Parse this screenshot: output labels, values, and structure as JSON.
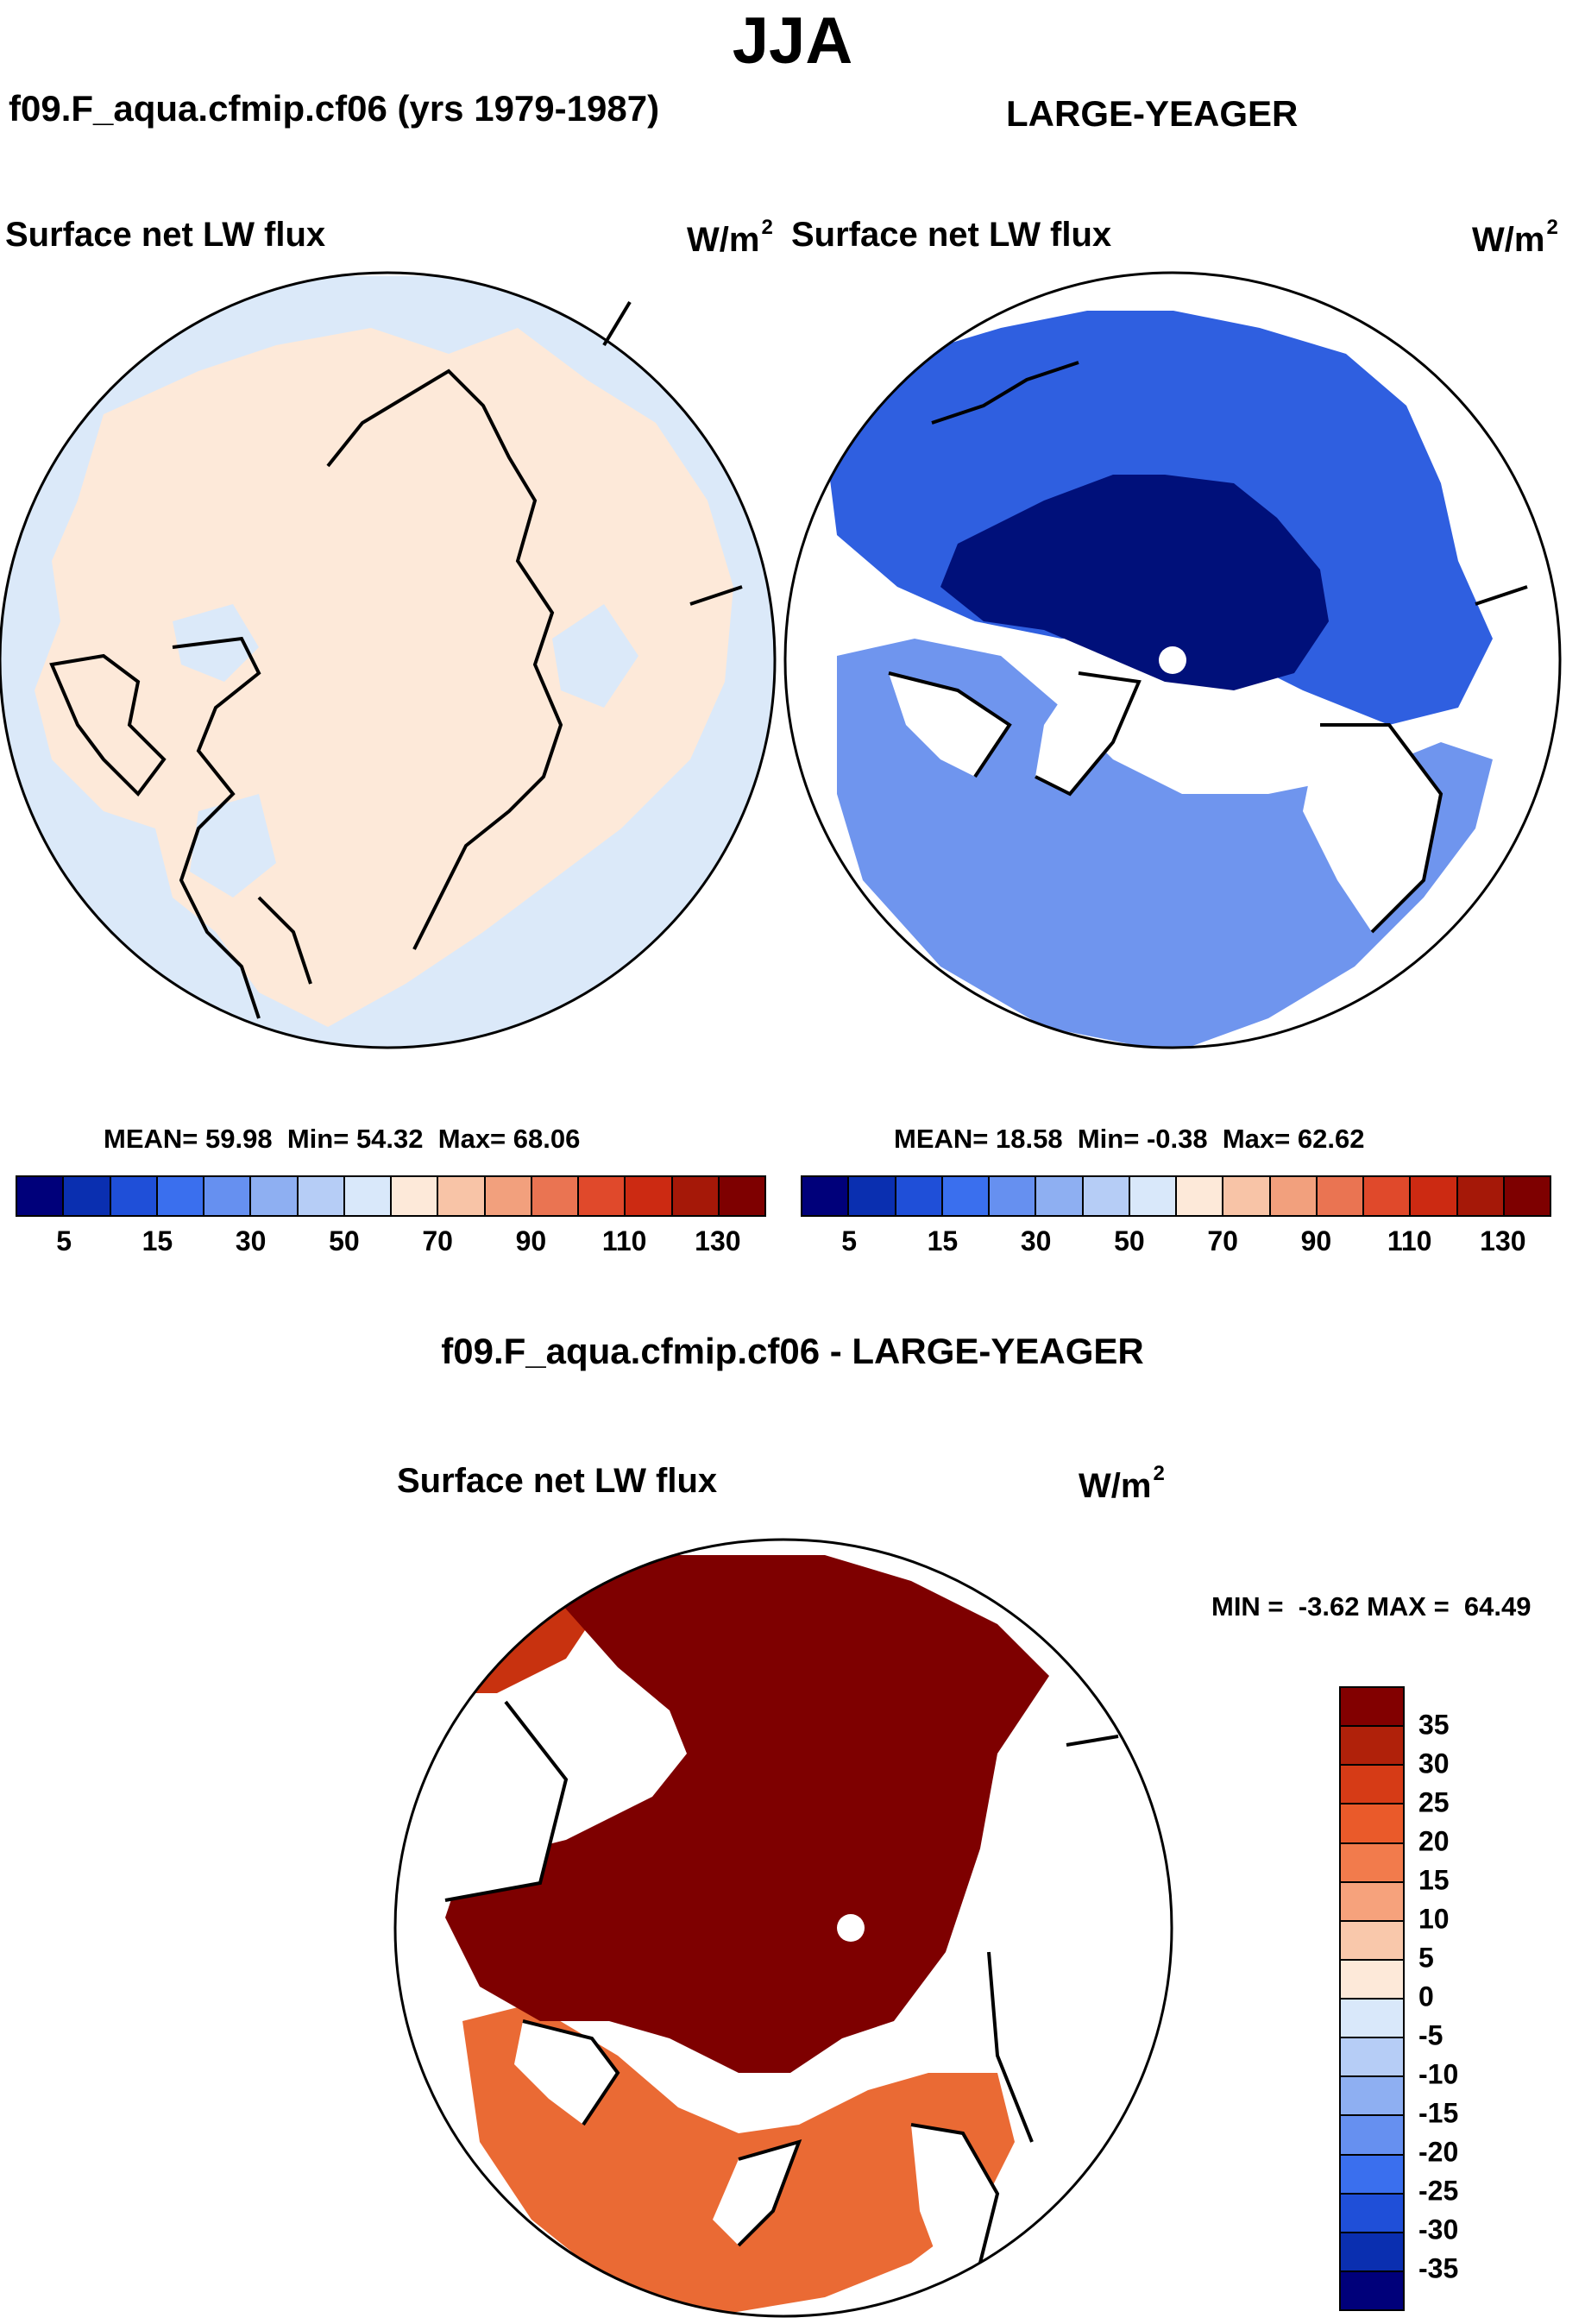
{
  "figure": {
    "season": "JJA",
    "left_panel": {
      "run_label": "f09.F_aqua.cfmip.cf06 (yrs 1979-1987)",
      "variable": "Surface net LW flux",
      "units": "W/m",
      "units_exp": "2",
      "stats": {
        "mean_label": "MEAN=",
        "mean": "59.98",
        "min_label": "Min=",
        "min": "54.32",
        "max_label": "Max=",
        "max": "68.06"
      }
    },
    "right_panel": {
      "run_label": "LARGE-YEAGER",
      "variable": "Surface net LW flux",
      "units": "W/m",
      "units_exp": "2",
      "stats": {
        "mean_label": "MEAN=",
        "mean": "18.58",
        "min_label": "Min=",
        "min": "-0.38",
        "max_label": "Max=",
        "max": "62.62"
      }
    },
    "bottom_panel": {
      "title": "f09.F_aqua.cfmip.cf06 - LARGE-YEAGER",
      "variable": "Surface net LW flux",
      "units": "W/m",
      "units_exp": "2",
      "minmax": {
        "min_label": "MIN =",
        "min": "-3.62",
        "max_label": "MAX =",
        "max": "64.49"
      }
    },
    "abs_colorbar": {
      "tick_labels": [
        "5",
        "15",
        "30",
        "50",
        "70",
        "90",
        "110",
        "130"
      ],
      "colors": [
        "#00007a",
        "#0a2fb0",
        "#1f4fd8",
        "#3a6fee",
        "#6690f0",
        "#8eaff2",
        "#b6cdf6",
        "#d9e8fa",
        "#fde9d9",
        "#f8c4a7",
        "#f2a07d",
        "#ea7452",
        "#e0492b",
        "#cc2a12",
        "#a51808",
        "#7e0000"
      ]
    },
    "diff_colorbar": {
      "tick_labels": [
        "35",
        "30",
        "25",
        "20",
        "15",
        "10",
        "5",
        "0",
        "-5",
        "-10",
        "-15",
        "-20",
        "-25",
        "-30",
        "-35"
      ],
      "colors": [
        "#820000",
        "#b0210a",
        "#d63b16",
        "#ea5a2a",
        "#f27b4c",
        "#f6a27c",
        "#f9c8ab",
        "#fde9d9",
        "#d9e8fa",
        "#b6cdf6",
        "#8eaff2",
        "#6690f0",
        "#3a6fee",
        "#1f4fd8",
        "#0a2fb0",
        "#00007a"
      ]
    },
    "map_fill_colors": {
      "ocean_pale_blue": "#dbe9f9",
      "peach": "#fde9d9",
      "dark_blue": "#00107a",
      "mid_blue": "#2f5fe0",
      "light_blue": "#6f95ee",
      "dark_red": "#7e0000",
      "red": "#c8320f",
      "orange": "#ea6a34"
    }
  }
}
